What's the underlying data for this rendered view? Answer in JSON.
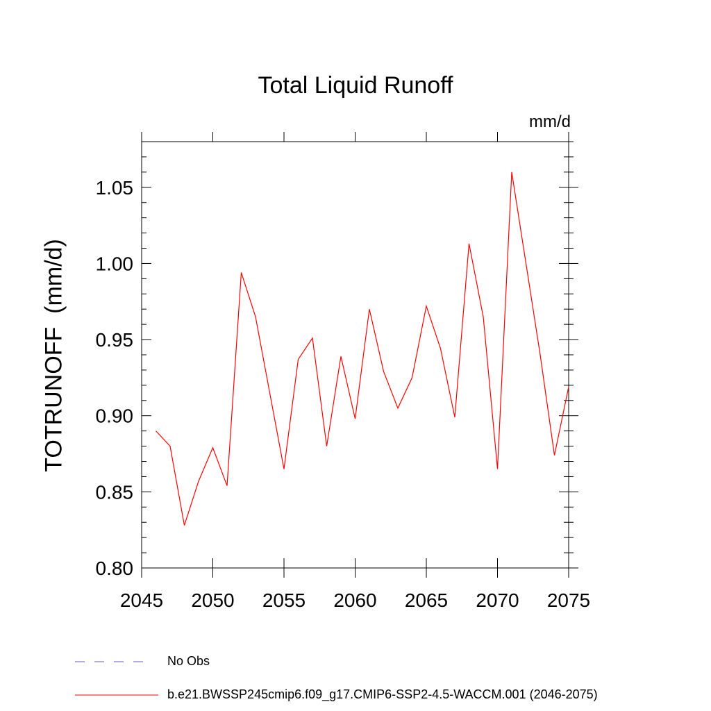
{
  "chart_data": {
    "type": "line",
    "title": "Total Liquid Runoff",
    "units": "mm/d",
    "ylabel": "TOTRUNOFF  (mm/d)",
    "xlim": [
      2045,
      2075
    ],
    "ylim": [
      0.8,
      1.08
    ],
    "x_ticks": [
      "2045",
      "2050",
      "2055",
      "2060",
      "2065",
      "2070",
      "2075"
    ],
    "y_ticks": [
      "0.80",
      "0.85",
      "0.90",
      "0.95",
      "1.00",
      "1.05"
    ],
    "series": [
      {
        "name": "b.e21.BWSSP245cmip6.f09_g17.CMIP6-SSP2-4.5-WACCM.001 (2046-2075)",
        "color": "#ff0000",
        "x": [
          2046,
          2047,
          2048,
          2049,
          2050,
          2051,
          2052,
          2053,
          2054,
          2055,
          2056,
          2057,
          2058,
          2059,
          2060,
          2061,
          2062,
          2063,
          2064,
          2065,
          2066,
          2067,
          2068,
          2069,
          2070,
          2071,
          2072,
          2073,
          2074,
          2075
        ],
        "y": [
          0.89,
          0.88,
          0.828,
          0.857,
          0.879,
          0.854,
          0.994,
          0.965,
          0.915,
          0.865,
          0.937,
          0.951,
          0.88,
          0.939,
          0.898,
          0.97,
          0.929,
          0.905,
          0.925,
          0.972,
          0.944,
          0.899,
          1.013,
          0.965,
          0.865,
          1.06,
          1.0,
          0.94,
          0.874,
          0.919
        ]
      }
    ],
    "legend": [
      {
        "label": "No Obs",
        "style": "dashed",
        "color": "#6a5acd"
      },
      {
        "label": "b.e21.BWSSP245cmip6.f09_g17.CMIP6-SSP2-4.5-WACCM.001 (2046-2075)",
        "style": "solid",
        "color": "#ff0000"
      }
    ]
  }
}
